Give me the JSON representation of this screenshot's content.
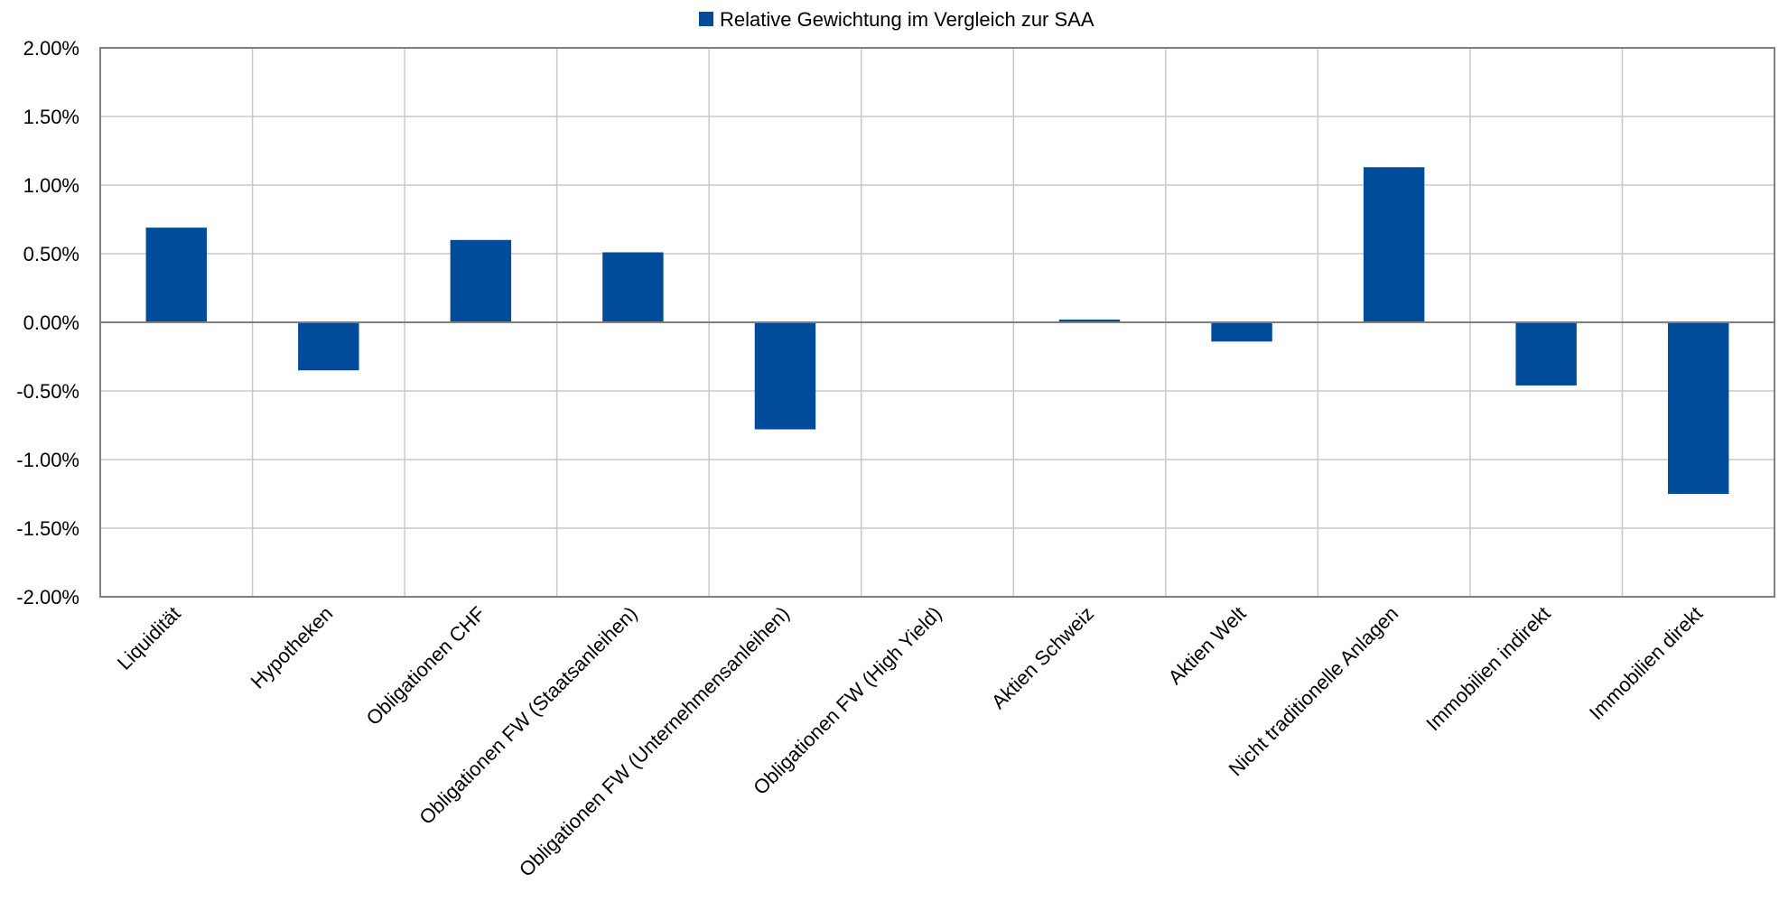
{
  "chart_data": {
    "type": "bar",
    "categories": [
      "Liquidität",
      "Hypotheken",
      "Obligationen CHF",
      "Obligationen FW (Staatsanleihen)",
      "Obligationen FW (Unternehmensanleihen)",
      "Obligationen FW (High Yield)",
      "Aktien Schweiz",
      "Aktien Welt",
      "Nicht traditionelle Anlagen",
      "Immobilien indirekt",
      "Immobilien direkt"
    ],
    "series": [
      {
        "name": "Relative Gewichtung im Vergleich zur SAA",
        "color": "#004C9B",
        "values": [
          0.69,
          -0.35,
          0.6,
          0.51,
          -0.78,
          0.0,
          0.02,
          -0.14,
          1.13,
          -0.46,
          -1.25
        ]
      }
    ],
    "ylim": [
      -2.0,
      2.0
    ],
    "yticks": [
      2.0,
      1.5,
      1.0,
      0.5,
      0.0,
      -0.5,
      -1.0,
      -1.5,
      -2.0
    ],
    "ytick_labels": [
      "2.00%",
      "1.50%",
      "1.00%",
      "0.50%",
      "0.00%",
      "-0.50%",
      "-1.00%",
      "-1.50%",
      "-2.00%"
    ],
    "y_unit": "%",
    "grid": true,
    "legend_position": "top-center",
    "title": "",
    "xlabel": "",
    "ylabel": ""
  }
}
